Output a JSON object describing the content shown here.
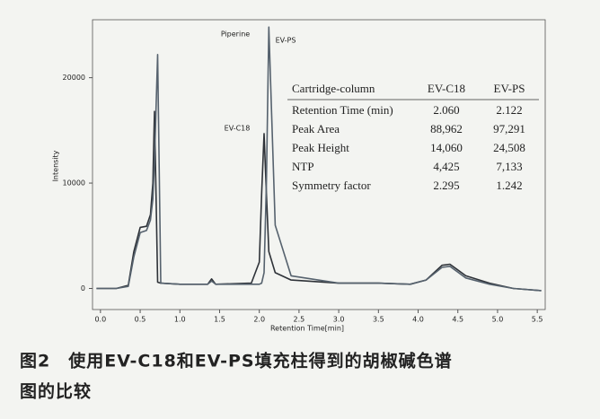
{
  "chart_data": {
    "type": "line",
    "x_label": "Retention Time[min]",
    "y_label": "Intensity",
    "x": [
      -0.05,
      0.2,
      0.35,
      0.42,
      0.5,
      0.58,
      0.63,
      0.66,
      0.68,
      0.7,
      0.72,
      0.76,
      1.0,
      1.35,
      1.4,
      1.45,
      1.9,
      2.0,
      2.03,
      2.06,
      2.09,
      2.12,
      2.2,
      2.4,
      3.0,
      3.5,
      3.9,
      4.1,
      4.3,
      4.4,
      4.6,
      4.9,
      5.2,
      5.55
    ],
    "series": [
      {
        "name": "EV-C18",
        "color": "#2e3238",
        "values": [
          0,
          0,
          300,
          3500,
          5800,
          5900,
          7000,
          10000,
          16800,
          9000,
          600,
          500,
          400,
          400,
          900,
          400,
          500,
          2500,
          9000,
          14700,
          9000,
          3500,
          1500,
          800,
          500,
          500,
          400,
          800,
          2200,
          2300,
          1200,
          500,
          0,
          -200
        ]
      },
      {
        "name": "EV-PS",
        "color": "#56626e",
        "values": [
          0,
          0,
          200,
          3000,
          5300,
          5500,
          6500,
          8500,
          12000,
          17000,
          22200,
          500,
          400,
          400,
          700,
          400,
          400,
          400,
          500,
          1500,
          10000,
          24800,
          6000,
          1200,
          500,
          500,
          400,
          800,
          2000,
          2100,
          1000,
          400,
          0,
          -200
        ]
      }
    ],
    "xlim": [
      -0.1,
      5.6
    ],
    "ylim": [
      -2000,
      25500
    ],
    "xticks": [
      {
        "value": 0,
        "label": "0.0"
      },
      0.5,
      {
        "value": 1,
        "label": "1.0"
      },
      1.5,
      {
        "value": 2,
        "label": "2.0"
      },
      2.5,
      {
        "value": 3,
        "label": "3.0"
      },
      3.5,
      {
        "value": 4,
        "label": "4.0"
      },
      4.5,
      {
        "value": 5,
        "label": "5.0"
      },
      5.5
    ],
    "yticks": [
      0,
      10000,
      20000
    ],
    "grid": false,
    "annotations": [
      "Piperine",
      "EV-PS",
      "EV-C18"
    ],
    "table": {
      "header": [
        "Cartridge-column",
        "EV-C18",
        "EV-PS"
      ],
      "rows": [
        [
          "Retention Time  (min)",
          "2.060",
          "2.122"
        ],
        [
          "Peak Area",
          "88,962",
          "97,291"
        ],
        [
          "Peak Height",
          "14,060",
          "24,508"
        ],
        [
          "NTP",
          "4,425",
          "7,133"
        ],
        [
          "Symmetry factor",
          "2.295",
          "1.242"
        ]
      ]
    },
    "caption_lines": [
      "图2　使用EV-C18和EV-PS填充柱得到的胡椒碱色谱",
      "图的比较"
    ]
  }
}
